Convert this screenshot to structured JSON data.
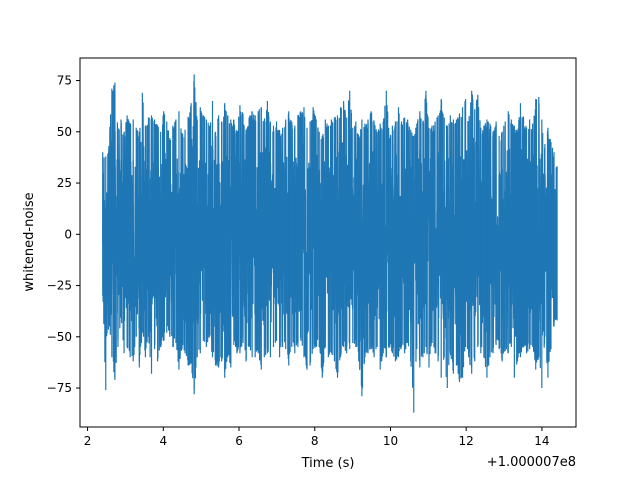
{
  "chart_data": {
    "type": "line",
    "xlabel": "Time (s)",
    "ylabel": "whitened-noise",
    "x_offset_label": "+1.000007e8",
    "xlim": [
      1.8,
      14.9
    ],
    "ylim": [
      -94,
      86
    ],
    "x_ticks": [
      2,
      4,
      6,
      8,
      10,
      12,
      14
    ],
    "x_tick_labels": [
      "2",
      "4",
      "6",
      "8",
      "10",
      "12",
      "14"
    ],
    "y_ticks": [
      -75,
      -50,
      -25,
      0,
      25,
      50,
      75
    ],
    "y_tick_labels": [
      "−75",
      "−50",
      "−25",
      "0",
      "25",
      "50",
      "75"
    ],
    "grid": false,
    "series": [
      {
        "color": "#1f77b4",
        "x_range": [
          2.4,
          14.4
        ],
        "envelope_upper": [
          40,
          38,
          43,
          71,
          74,
          52,
          56,
          50,
          58,
          54,
          56,
          52,
          50,
          69,
          53,
          57,
          58,
          56,
          53,
          50,
          60,
          55,
          47,
          53,
          56,
          60,
          49,
          51,
          57,
          64,
          78,
          56,
          62,
          58,
          56,
          53,
          65,
          50,
          58,
          55,
          64,
          58,
          56,
          56,
          50,
          63,
          59,
          51,
          57,
          60,
          58,
          60,
          62,
          56,
          65,
          55,
          53,
          55,
          51,
          52,
          56,
          60,
          55,
          53,
          58,
          60,
          62,
          52,
          55,
          62,
          56,
          50,
          48,
          56,
          53,
          56,
          57,
          58,
          62,
          65,
          57,
          70,
          52,
          55,
          48,
          56,
          54,
          56,
          60,
          55,
          50,
          54,
          55,
          70,
          47,
          53,
          55,
          62,
          55,
          57,
          56,
          51,
          48,
          54,
          60,
          55,
          70,
          52,
          53,
          55,
          58,
          66,
          57,
          53,
          58,
          56,
          56,
          59,
          62,
          66,
          55,
          70,
          61,
          68,
          52,
          53,
          56,
          54,
          50,
          55,
          48,
          50,
          55,
          60,
          56,
          53,
          50,
          64,
          57,
          52,
          56,
          54,
          66,
          67,
          56,
          44,
          52,
          45,
          40,
          33
        ],
        "envelope_lower": [
          -30,
          -76,
          -44,
          -60,
          -71,
          -55,
          -40,
          -58,
          -55,
          -60,
          -62,
          -50,
          -65,
          -48,
          -60,
          -50,
          -68,
          -56,
          -62,
          -55,
          -52,
          -48,
          -50,
          -55,
          -53,
          -66,
          -56,
          -58,
          -64,
          -63,
          -78,
          -60,
          -58,
          -52,
          -55,
          -50,
          -60,
          -64,
          -65,
          -62,
          -70,
          -60,
          -65,
          -54,
          -58,
          -58,
          -53,
          -62,
          -55,
          -60,
          -60,
          -58,
          -66,
          -60,
          -58,
          -60,
          -55,
          -52,
          -60,
          -55,
          -56,
          -64,
          -55,
          -58,
          -55,
          -52,
          -60,
          -66,
          -64,
          -56,
          -55,
          -55,
          -70,
          -55,
          -60,
          -58,
          -62,
          -70,
          -60,
          -55,
          -58,
          -56,
          -53,
          -55,
          -62,
          -79,
          -60,
          -58,
          -56,
          -60,
          -55,
          -66,
          -58,
          -60,
          -55,
          -58,
          -62,
          -60,
          -55,
          -58,
          -53,
          -62,
          -87,
          -56,
          -65,
          -60,
          -55,
          -65,
          -53,
          -58,
          -62,
          -70,
          -60,
          -75,
          -58,
          -68,
          -64,
          -72,
          -70,
          -55,
          -60,
          -68,
          -62,
          -55,
          -58,
          -60,
          -70,
          -60,
          -58,
          -54,
          -56,
          -62,
          -57,
          -58,
          -55,
          -70,
          -62,
          -60,
          -55,
          -58,
          -56,
          -55,
          -66,
          -60,
          -75,
          -50,
          -70,
          -56,
          -45,
          -42
        ]
      }
    ]
  }
}
